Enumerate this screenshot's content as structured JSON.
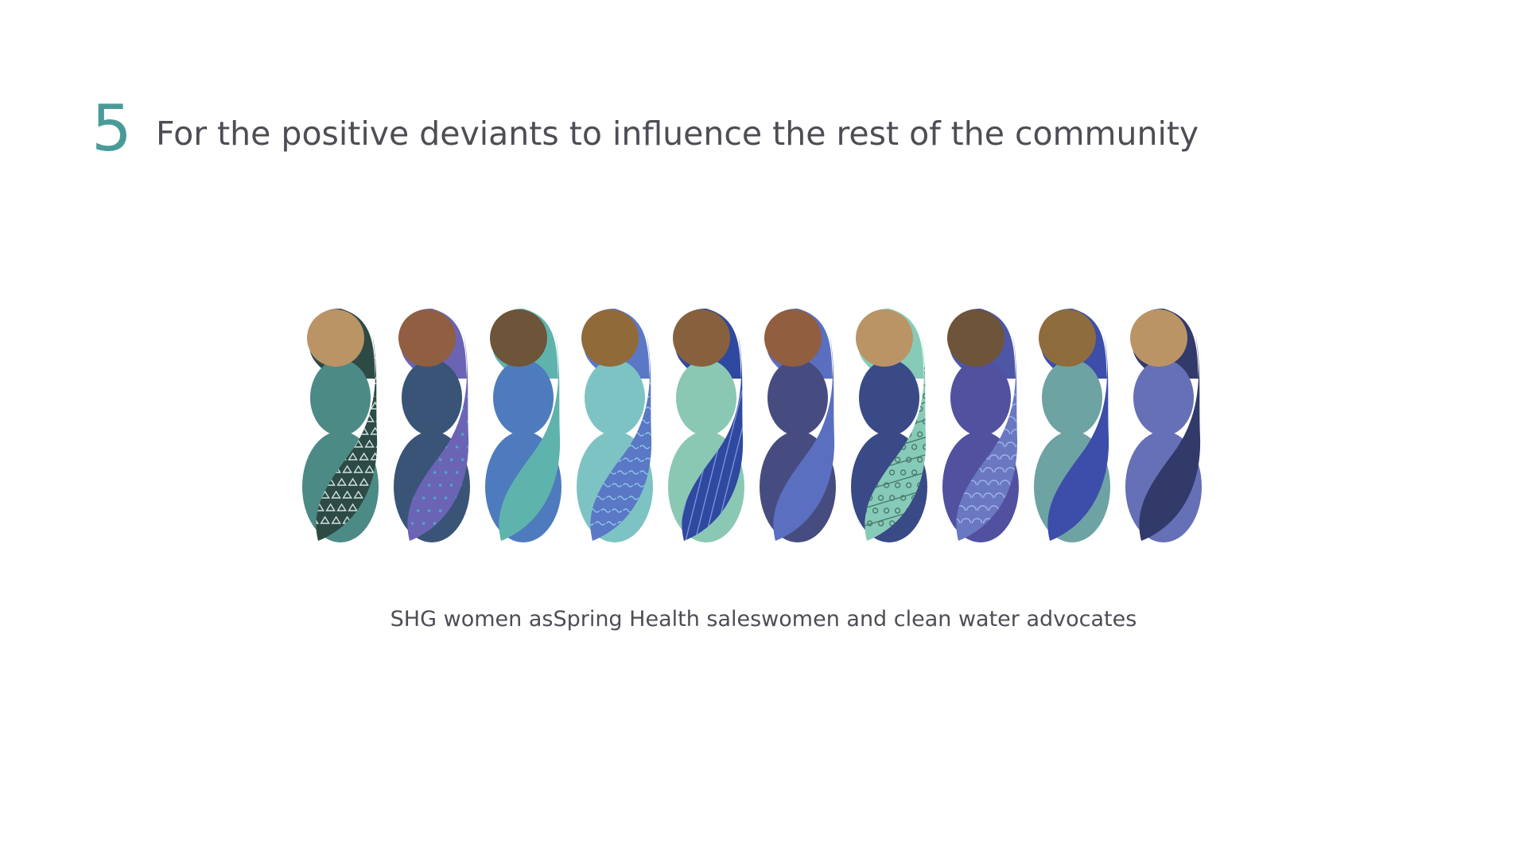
{
  "slide": {
    "number": "5",
    "title": "For the positive deviants to influence the rest of the community",
    "caption": "SHG women asSpring Health saleswomen and clean water advocates"
  },
  "figures": [
    {
      "name": "woman-figure-1",
      "scarf": "#2e4a45",
      "body": "#4c8a85",
      "face": "#bb9466",
      "wrap": "#2e4a45",
      "pattern": "triangles",
      "patternColor": "#cfe3e0"
    },
    {
      "name": "woman-figure-2",
      "scarf": "#6b64b5",
      "body": "#3a5478",
      "face": "#905e40",
      "wrap": "#6b64b5",
      "pattern": "dots",
      "patternColor": "#4fa6c9"
    },
    {
      "name": "woman-figure-3",
      "scarf": "#5fb3ad",
      "body": "#4e7bbd",
      "face": "#6e5438",
      "wrap": "#5fb3ad",
      "pattern": "flowers",
      "patternColor": "#d8efe9"
    },
    {
      "name": "woman-figure-4",
      "scarf": "#5a78c6",
      "body": "#7ec3c4",
      "face": "#916a3a",
      "wrap": "#5a78c6",
      "pattern": "waves",
      "patternColor": "#8cc7e4"
    },
    {
      "name": "woman-figure-5",
      "scarf": "#2f48a0",
      "body": "#8ac8b4",
      "face": "#87613e",
      "wrap": "#2f48a0",
      "pattern": "lines",
      "patternColor": "#7a93d6"
    },
    {
      "name": "woman-figure-6",
      "scarf": "#5a6fc0",
      "body": "#474c80",
      "face": "#925e40",
      "wrap": "#5a6fc0",
      "pattern": "leaves-flowers",
      "patternColor": "#9fd2ec"
    },
    {
      "name": "woman-figure-7",
      "scarf": "#86cbb7",
      "body": "#394a86",
      "face": "#bb9466",
      "wrap": "#86cbb7",
      "pattern": "stripes-circles",
      "patternColor": "#4b7a70"
    },
    {
      "name": "woman-figure-8",
      "scarf": "#4d57a6",
      "body": "#5151a0",
      "face": "#6e5438",
      "wrap": "#6a78c2",
      "pattern": "scales",
      "patternColor": "#9fb2e6"
    },
    {
      "name": "woman-figure-9",
      "scarf": "#3c4eaa",
      "body": "#6ea3a3",
      "face": "#8e6c3e",
      "wrap": "#3c4eaa",
      "pattern": "spirals",
      "patternColor": "#8fa6e6"
    },
    {
      "name": "woman-figure-10",
      "scarf": "#323a6a",
      "body": "#6670b6",
      "face": "#bb9466",
      "wrap": "#323a6a",
      "pattern": "leaves",
      "patternColor": "#6fbfc0"
    }
  ]
}
